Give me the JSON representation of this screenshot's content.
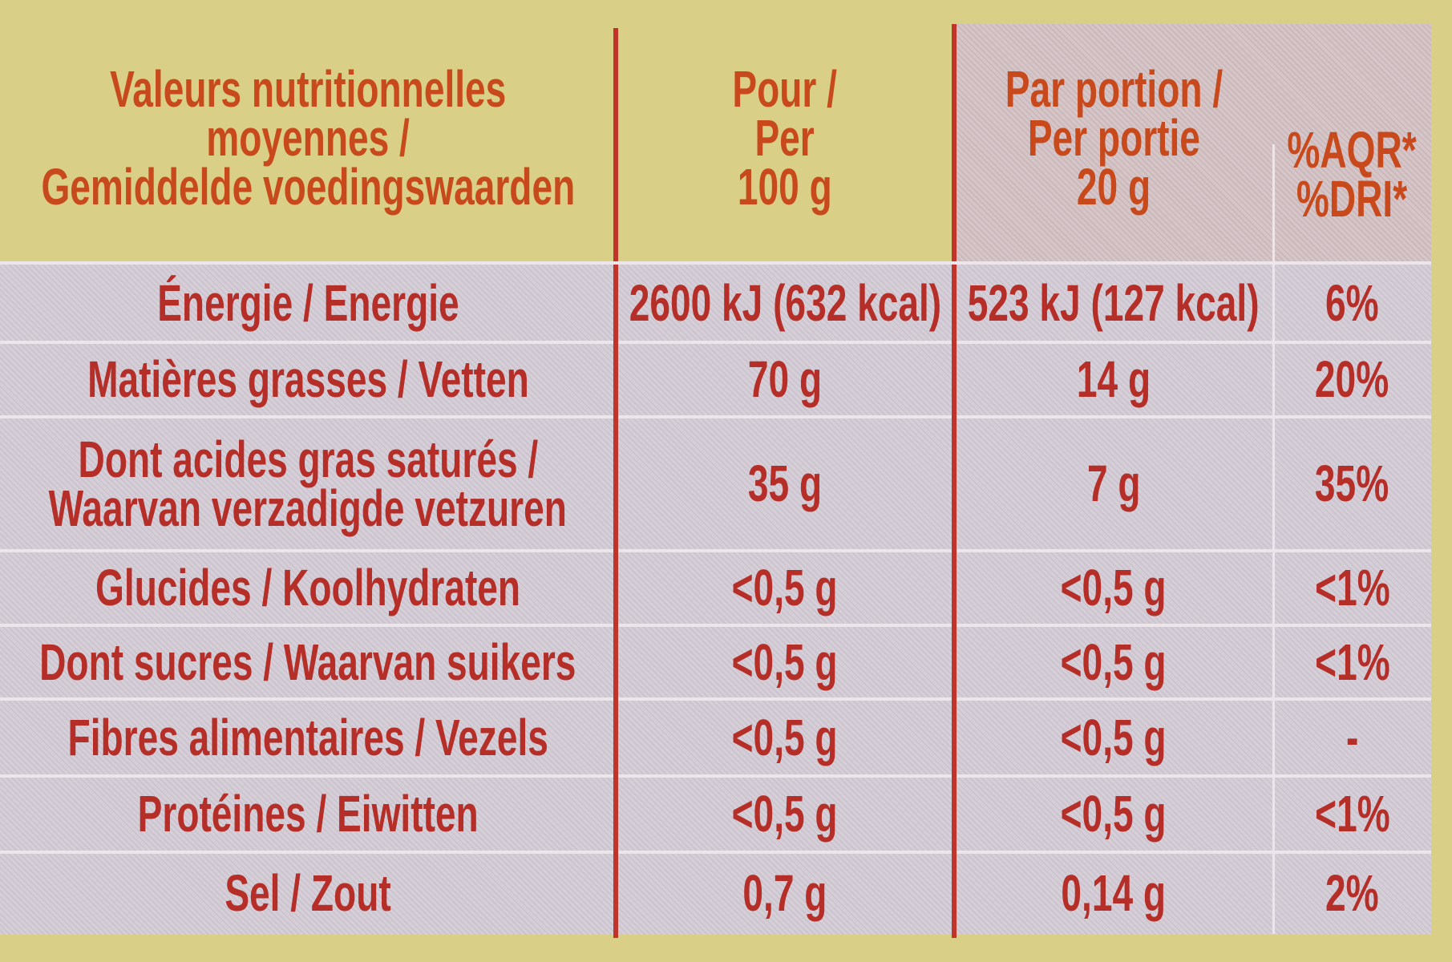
{
  "table": {
    "header": [
      {
        "lines": [
          "Valeurs nutritionnelles",
          "moyennes /",
          "Gemiddelde voedingswaarden"
        ]
      },
      {
        "lines": [
          "Pour /",
          "Per",
          "100 g"
        ]
      },
      {
        "lines": [
          "Par portion /",
          "Per portie",
          "20 g"
        ]
      },
      {
        "lines": [
          "%AQR*",
          "%DRI*"
        ]
      }
    ],
    "rows": [
      {
        "label": [
          "Énergie / Energie"
        ],
        "per100": "2600 kJ (632 kcal)",
        "portion": "523 kJ (127 kcal)",
        "dri": "6%"
      },
      {
        "label": [
          "Matières grasses / Vetten"
        ],
        "per100": "70 g",
        "portion": "14 g",
        "dri": "20%"
      },
      {
        "label": [
          "Dont acides gras saturés /",
          "Waarvan verzadigde vetzuren"
        ],
        "per100": "35 g",
        "portion": "7 g",
        "dri": "35%"
      },
      {
        "label": [
          "Glucides / Koolhydraten"
        ],
        "per100": "<0,5 g",
        "portion": "<0,5 g",
        "dri": "<1%"
      },
      {
        "label": [
          "Dont sucres / Waarvan suikers"
        ],
        "per100": "<0,5 g",
        "portion": "<0,5 g",
        "dri": "<1%"
      },
      {
        "label": [
          "Fibres alimentaires / Vezels"
        ],
        "per100": "<0,5 g",
        "portion": "<0,5 g",
        "dri": "-"
      },
      {
        "label": [
          "Protéines / Eiwitten"
        ],
        "per100": "<0,5 g",
        "portion": "<0,5 g",
        "dri": "<1%"
      },
      {
        "label": [
          "Sel / Zout"
        ],
        "per100": "0,7 g",
        "portion": "0,14 g",
        "dri": "2%"
      }
    ]
  }
}
